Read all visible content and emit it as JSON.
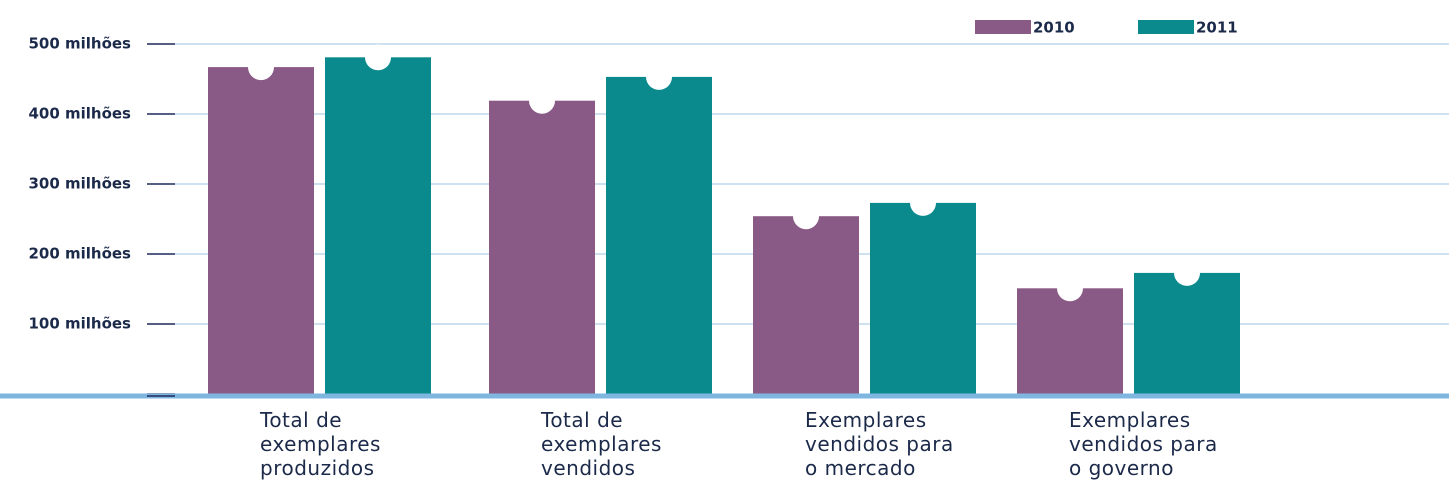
{
  "chart_data": {
    "type": "bar",
    "categories": [
      "Total de exemplares produzidos",
      "Total de exemplares vendidos",
      "Exemplares vendidos para o mercado",
      "Exemplares vendidos para o governo"
    ],
    "series": [
      {
        "name": "2010",
        "color": "#8a5a86",
        "values": [
          467,
          419,
          254,
          151
        ]
      },
      {
        "name": "2011",
        "color": "#0b8a8d",
        "values": [
          481,
          453,
          273,
          173
        ]
      }
    ],
    "ylim": [
      0,
      500
    ],
    "yticks": [
      0,
      {
        "value": 100,
        "label": "100 milhões"
      },
      {
        "value": 200,
        "label": "200 milhões"
      },
      {
        "value": 300,
        "label": "300 milhões"
      },
      {
        "value": 400,
        "label": "400 milhões"
      },
      {
        "value": 500,
        "label": "500 milhões"
      }
    ],
    "grid": true
  }
}
